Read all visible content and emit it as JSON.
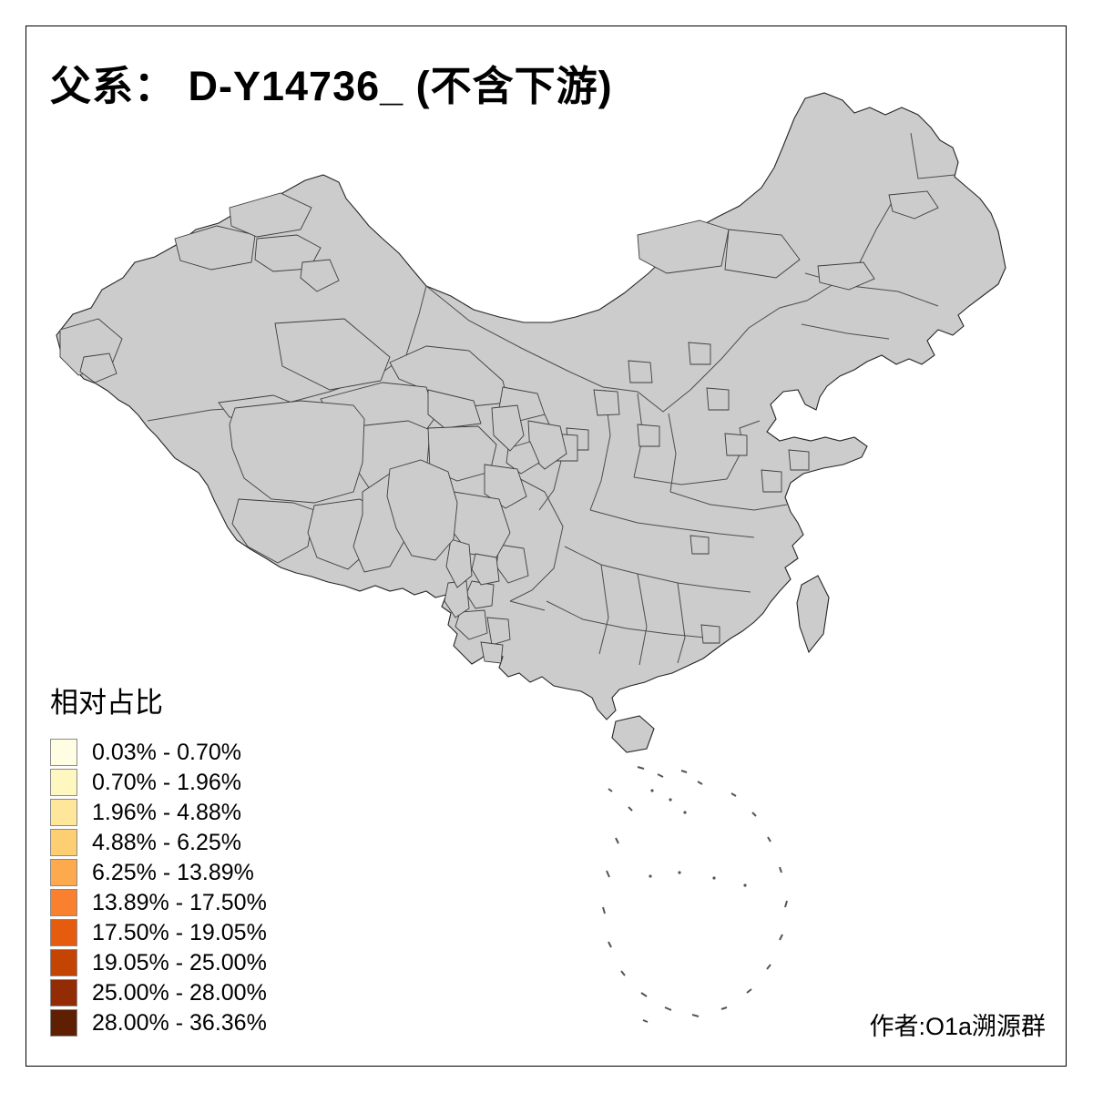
{
  "page": {
    "title": "父系： D-Y14736_ (不含下游)",
    "attribution": "作者:O1a溯源群"
  },
  "chart_data": {
    "type": "heatmap",
    "subtype": "choropleth-map",
    "area": "China, prefecture-level divisions",
    "title": "父系： D-Y14736_ (不含下游)",
    "legend_title": "相对占比",
    "no_data_color": "#CCCCCC",
    "bins": [
      {
        "label": "0.03% - 0.70%",
        "color": "#FFFEE3"
      },
      {
        "label": "0.70% - 1.96%",
        "color": "#FFF7C0"
      },
      {
        "label": "1.96% - 4.88%",
        "color": "#FEE79B"
      },
      {
        "label": "4.88% - 6.25%",
        "color": "#FDCF72"
      },
      {
        "label": "6.25% - 13.89%",
        "color": "#FDA94E"
      },
      {
        "label": "13.89% - 17.50%",
        "color": "#F8802E"
      },
      {
        "label": "17.50% - 19.05%",
        "color": "#E65C0F"
      },
      {
        "label": "19.05% - 25.00%",
        "color": "#C44403"
      },
      {
        "label": "25.00% - 28.00%",
        "color": "#932B05"
      },
      {
        "label": "28.00% - 36.36%",
        "color": "#5E1F03"
      }
    ],
    "regions": [
      {
        "id": "tacheng",
        "bin": 0
      },
      {
        "id": "altay",
        "bin": 0
      },
      {
        "id": "changji",
        "bin": 1
      },
      {
        "id": "urumqi",
        "bin": 0
      },
      {
        "id": "ili",
        "bin": 1
      },
      {
        "id": "bortala",
        "bin": 2
      },
      {
        "id": "bayingol",
        "bin": 1
      },
      {
        "id": "hotan",
        "bin": 2
      },
      {
        "id": "jiuquan",
        "bin": 1
      },
      {
        "id": "wuwei",
        "bin": 2
      },
      {
        "id": "haixi",
        "bin": 2
      },
      {
        "id": "haixi-east",
        "bin": 3
      },
      {
        "id": "yushu",
        "bin": 5
      },
      {
        "id": "golog",
        "bin": 5
      },
      {
        "id": "qinghai-lake",
        "bin": 8
      },
      {
        "id": "huangnan",
        "bin": 6
      },
      {
        "id": "gannan",
        "bin": 6
      },
      {
        "id": "nagqu",
        "bin": 6
      },
      {
        "id": "shigatse",
        "bin": 3
      },
      {
        "id": "lhasa",
        "bin": 4
      },
      {
        "id": "nyingchi",
        "bin": 7
      },
      {
        "id": "chamdo",
        "bin": 9
      },
      {
        "id": "garze",
        "bin": 7
      },
      {
        "id": "aba",
        "bin": 2
      },
      {
        "id": "muli",
        "bin": 5
      },
      {
        "id": "liangshan",
        "bin": 1
      },
      {
        "id": "diqing",
        "bin": 8
      },
      {
        "id": "nujiang",
        "bin": 4
      },
      {
        "id": "lijiang",
        "bin": 3
      },
      {
        "id": "dali",
        "bin": 1
      },
      {
        "id": "yunnan-c1",
        "bin": 0
      },
      {
        "id": "yunnan-c2",
        "bin": 0
      },
      {
        "id": "im-west",
        "bin": 1
      },
      {
        "id": "im-mid",
        "bin": 0
      },
      {
        "id": "im-east",
        "bin": 0
      },
      {
        "id": "hlj-patch",
        "bin": 0
      },
      {
        "id": "nc1",
        "bin": 1
      },
      {
        "id": "nc2",
        "bin": 0
      },
      {
        "id": "nc3",
        "bin": 1
      },
      {
        "id": "nc4",
        "bin": 0
      },
      {
        "id": "nc5",
        "bin": 0
      },
      {
        "id": "nc6",
        "bin": 0
      },
      {
        "id": "nc7",
        "bin": 0
      },
      {
        "id": "nc8",
        "bin": 0
      },
      {
        "id": "nc9",
        "bin": 0
      },
      {
        "id": "shaanxi",
        "bin": 1
      },
      {
        "id": "hubei",
        "bin": 0
      },
      {
        "id": "jiangxi",
        "bin": 0
      }
    ]
  }
}
